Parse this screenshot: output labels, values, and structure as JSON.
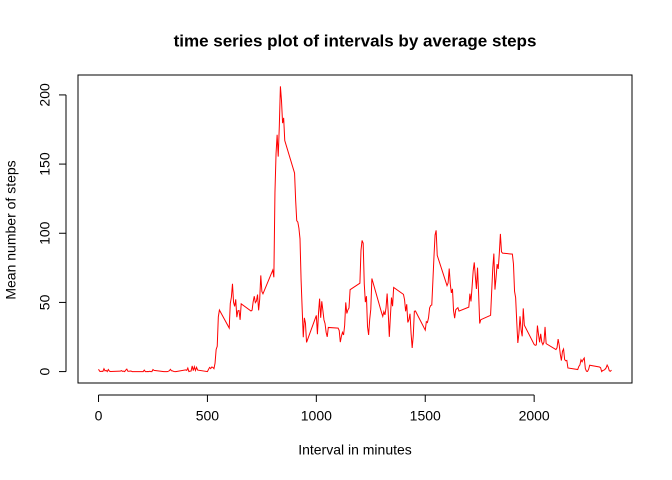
{
  "chart_data": {
    "type": "line",
    "title": "time series plot of intervals by average steps",
    "x_label": "Interval in minutes",
    "y_label": "Mean number of steps",
    "xlim": [
      -94.2,
      2449.2
    ],
    "ylim": [
      -8.25,
      214.4
    ],
    "xticks": [
      0,
      500,
      1000,
      1500,
      2000
    ],
    "yticks": [
      0,
      50,
      100,
      150,
      200
    ],
    "series": [
      {
        "color": "#ff0000",
        "x": [
          0,
          5,
          10,
          15,
          20,
          25,
          30,
          35,
          40,
          45,
          50,
          55,
          100,
          105,
          110,
          115,
          120,
          125,
          130,
          135,
          140,
          145,
          150,
          155,
          200,
          205,
          210,
          215,
          220,
          225,
          230,
          235,
          240,
          245,
          250,
          255,
          300,
          305,
          310,
          315,
          320,
          325,
          330,
          335,
          340,
          345,
          350,
          355,
          400,
          405,
          410,
          415,
          420,
          425,
          430,
          435,
          440,
          445,
          450,
          455,
          500,
          505,
          510,
          515,
          520,
          525,
          530,
          535,
          540,
          545,
          550,
          555,
          600,
          605,
          610,
          615,
          620,
          625,
          630,
          635,
          640,
          645,
          650,
          655,
          700,
          705,
          710,
          715,
          720,
          725,
          730,
          735,
          740,
          745,
          750,
          755,
          800,
          805,
          810,
          815,
          820,
          825,
          830,
          835,
          840,
          845,
          850,
          855,
          900,
          905,
          910,
          915,
          920,
          925,
          930,
          935,
          940,
          945,
          950,
          955,
          1000,
          1005,
          1010,
          1015,
          1020,
          1025,
          1030,
          1035,
          1040,
          1045,
          1050,
          1055,
          1100,
          1105,
          1110,
          1115,
          1120,
          1125,
          1130,
          1135,
          1140,
          1145,
          1150,
          1155,
          1200,
          1205,
          1210,
          1215,
          1220,
          1225,
          1230,
          1235,
          1240,
          1245,
          1250,
          1255,
          1300,
          1305,
          1310,
          1315,
          1320,
          1325,
          1330,
          1335,
          1340,
          1345,
          1350,
          1355,
          1400,
          1405,
          1410,
          1415,
          1420,
          1425,
          1430,
          1435,
          1440,
          1445,
          1450,
          1455,
          1500,
          1505,
          1510,
          1515,
          1520,
          1525,
          1530,
          1535,
          1540,
          1545,
          1550,
          1555,
          1600,
          1605,
          1610,
          1615,
          1620,
          1625,
          1630,
          1635,
          1640,
          1645,
          1650,
          1655,
          1700,
          1705,
          1710,
          1715,
          1720,
          1725,
          1730,
          1735,
          1740,
          1745,
          1750,
          1755,
          1800,
          1805,
          1810,
          1815,
          1820,
          1825,
          1830,
          1835,
          1840,
          1845,
          1850,
          1855,
          1900,
          1905,
          1910,
          1915,
          1920,
          1925,
          1930,
          1935,
          1940,
          1945,
          1950,
          1955,
          2000,
          2005,
          2010,
          2015,
          2020,
          2025,
          2030,
          2035,
          2040,
          2045,
          2050,
          2055,
          2100,
          2105,
          2110,
          2115,
          2120,
          2125,
          2130,
          2135,
          2140,
          2145,
          2150,
          2155,
          2200,
          2205,
          2210,
          2215,
          2220,
          2225,
          2230,
          2235,
          2240,
          2245,
          2250,
          2255,
          2300,
          2305,
          2310,
          2315,
          2320,
          2325,
          2330,
          2335,
          2340,
          2345,
          2350,
          2355
        ],
        "values": [
          1.7,
          0.3,
          0.1,
          0.2,
          0.1,
          2.1,
          0.5,
          0.9,
          0,
          1.5,
          0.3,
          0.1,
          0.3,
          0.7,
          0.2,
          0.3,
          0,
          1.1,
          1.8,
          0.2,
          0.2,
          0.4,
          0.3,
          0,
          0,
          0,
          1.1,
          0,
          0,
          0.1,
          0,
          0.2,
          0,
          0,
          1.5,
          0.9,
          0,
          0,
          0,
          0,
          0.2,
          0.6,
          1.6,
          0.6,
          0.5,
          0.1,
          0,
          0,
          1.2,
          0.9,
          2.6,
          0,
          0.3,
          0.4,
          4.1,
          0.7,
          3.5,
          0.8,
          3.1,
          1.1,
          0,
          1.6,
          3,
          2.2,
          3.3,
          3,
          2.1,
          6.1,
          16,
          18.3,
          39.5,
          44.5,
          31.5,
          49.3,
          53.8,
          63.5,
          50,
          47.1,
          52.2,
          39.3,
          44,
          44.2,
          37.4,
          49,
          43.8,
          44.4,
          50.5,
          54.5,
          49.9,
          51,
          55.7,
          44.3,
          52.3,
          69.5,
          57.8,
          56.2,
          73.4,
          68.2,
          129.4,
          157.5,
          171.2,
          155.4,
          177.3,
          206.2,
          195.9,
          179.6,
          183.4,
          167,
          143.5,
          124,
          109.1,
          108.1,
          103.7,
          96,
          66.2,
          45.2,
          24.8,
          38.8,
          35,
          21.1,
          40.6,
          27,
          42.4,
          52.7,
          38.9,
          50.8,
          44.3,
          37.4,
          34.7,
          28.3,
          25.1,
          31.9,
          31.4,
          29.7,
          21.3,
          25.5,
          28.4,
          26.5,
          33.4,
          50,
          42,
          44.6,
          46,
          59.2,
          63.9,
          87.7,
          94.8,
          92.8,
          63.4,
          50.2,
          54.5,
          32.4,
          26.5,
          37.7,
          45.1,
          67.3,
          42.3,
          39.9,
          43.3,
          41,
          46.2,
          56.4,
          42.8,
          25.1,
          40,
          53.5,
          47.3,
          60.8,
          55.8,
          52,
          43.6,
          48.7,
          35.5,
          37.5,
          41.8,
          27.5,
          17.1,
          26.1,
          43.6,
          43.8,
          30,
          36.1,
          35.5,
          38.8,
          46,
          47.8,
          48.1,
          65.3,
          82.9,
          98.7,
          102.1,
          84,
          62.1,
          64.1,
          74.5,
          63.2,
          56.9,
          59.8,
          43.9,
          38.6,
          44.7,
          45.5,
          46.2,
          43.7,
          46.6,
          56.3,
          50.7,
          61.2,
          72.7,
          78.9,
          68.9,
          59.7,
          75.1,
          56.5,
          34.8,
          37.5,
          40.7,
          58,
          74.7,
          85.3,
          59.3,
          67.8,
          77.7,
          74.2,
          85.3,
          99.5,
          86.6,
          85.6,
          84.9,
          77.8,
          58,
          53.4,
          36.3,
          20.7,
          27.4,
          40,
          30.2,
          25.5,
          45.7,
          33.5,
          19.6,
          19,
          19.3,
          33.3,
          26.8,
          21.2,
          27.3,
          21.3,
          19.5,
          21.3,
          32.3,
          20.2,
          15.9,
          17.2,
          23.5,
          19.2,
          12.5,
          8,
          14.7,
          16.3,
          8.7,
          7.8,
          8.1,
          2.6,
          1.5,
          3.7,
          4.8,
          8.5,
          7.1,
          8.7,
          9.8,
          2.2,
          0.3,
          0.1,
          1.6,
          4.6,
          3.3,
          2.8,
          0,
          0.8,
          1,
          1.6,
          2.6,
          4.7,
          3.3,
          0.6,
          0.2,
          1.1
        ]
      }
    ]
  }
}
